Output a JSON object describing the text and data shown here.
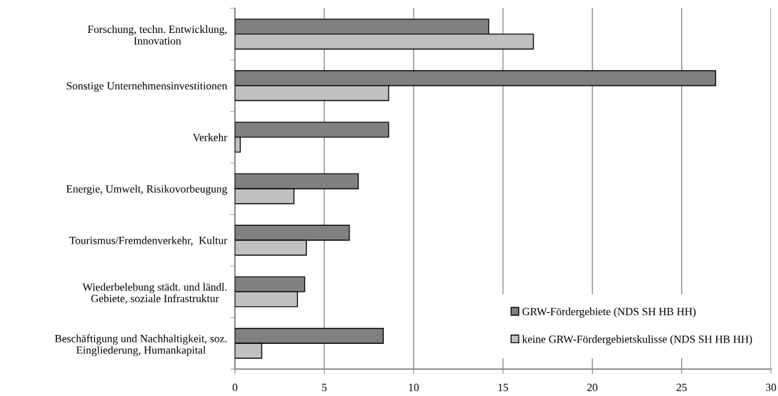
{
  "chart_data": {
    "type": "bar",
    "orientation": "horizontal",
    "categories": [
      "Forschung, techn. Entwicklung,\nInnovation",
      "Sonstige Unternehmensinvestitionen",
      "Verkehr",
      "Energie, Umwelt, Risikovorbeugung",
      "Tourismus/Fremdenverkehr,  Kultur",
      "Wiederbelebung städt. und ländl.\nGebiete, soziale Infrastruktur",
      "Beschäftigung und Nachhaltigkeit, soz.\nEingliederung, Humankapital"
    ],
    "series": [
      {
        "name": "GRW-Fördergebiete (NDS SH HB HH)",
        "color": "#808080",
        "values": [
          14.2,
          26.9,
          8.6,
          6.9,
          6.4,
          3.9,
          8.3
        ]
      },
      {
        "name": "keine GRW-Fördergebietskulisse (NDS SH HB HH)",
        "color": "#c0c0c0",
        "values": [
          16.7,
          8.6,
          0.3,
          3.3,
          4.0,
          3.5,
          1.5
        ]
      }
    ],
    "xlim": [
      0,
      30
    ],
    "xticks": [
      0,
      5,
      10,
      15,
      20,
      25,
      30
    ],
    "grid": "x",
    "legend": "bottom right"
  }
}
